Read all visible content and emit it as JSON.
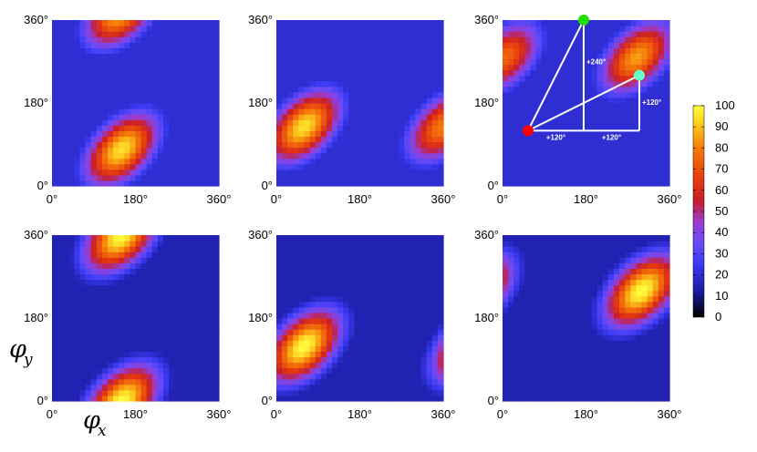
{
  "chart_data": {
    "type": "heatmap",
    "panels_grid": [
      2,
      3
    ],
    "panel_range_deg": [
      0,
      360
    ],
    "ticks": [
      "0°",
      "180°",
      "360°"
    ],
    "xlabel": {
      "var": "φ",
      "sub": "x"
    },
    "ylabel": {
      "var": "φ",
      "sub": "y"
    },
    "colorbar": {
      "range": [
        0,
        100
      ],
      "ticks": [
        "0",
        "10",
        "20",
        "30",
        "40",
        "50",
        "60",
        "70",
        "80",
        "90",
        "100"
      ]
    },
    "panels": [
      {
        "name": "top-left",
        "baseline": 20,
        "blobs": [
          {
            "x": 150,
            "y": 80,
            "peak": 95
          },
          {
            "x": 150,
            "y": 380,
            "peak": 90
          }
        ]
      },
      {
        "name": "top-middle",
        "baseline": 20,
        "blobs": [
          {
            "x": 60,
            "y": 130,
            "peak": 95
          },
          {
            "x": 360,
            "y": 130,
            "peak": 80
          }
        ]
      },
      {
        "name": "top-right",
        "baseline": 20,
        "blobs": [
          {
            "x": 290,
            "y": 280,
            "peak": 85
          },
          {
            "x": 5,
            "y": 280,
            "peak": 75
          }
        ],
        "annotated": true
      },
      {
        "name": "bottom-left",
        "baseline": 15,
        "blobs": [
          {
            "x": 150,
            "y": 0,
            "peak": 100
          },
          {
            "x": 150,
            "y": 360,
            "peak": 100
          }
        ]
      },
      {
        "name": "bottom-middle",
        "baseline": 15,
        "blobs": [
          {
            "x": 60,
            "y": 120,
            "peak": 100
          },
          {
            "x": 420,
            "y": 120,
            "peak": 100
          }
        ]
      },
      {
        "name": "bottom-right",
        "baseline": 15,
        "blobs": [
          {
            "x": 300,
            "y": 240,
            "peak": 100
          },
          {
            "x": -60,
            "y": 240,
            "peak": 100
          }
        ]
      }
    ],
    "annotation": {
      "points": [
        {
          "label": "red",
          "x": 55,
          "y": 120,
          "color": "#ff0000"
        },
        {
          "label": "green",
          "x": 175,
          "y": 360,
          "color": "#22dd00"
        },
        {
          "label": "cyan",
          "x": 295,
          "y": 240,
          "color": "#66ffcc"
        }
      ],
      "labels": [
        "+240°",
        "+120°",
        "+120°",
        "+120°"
      ]
    }
  }
}
